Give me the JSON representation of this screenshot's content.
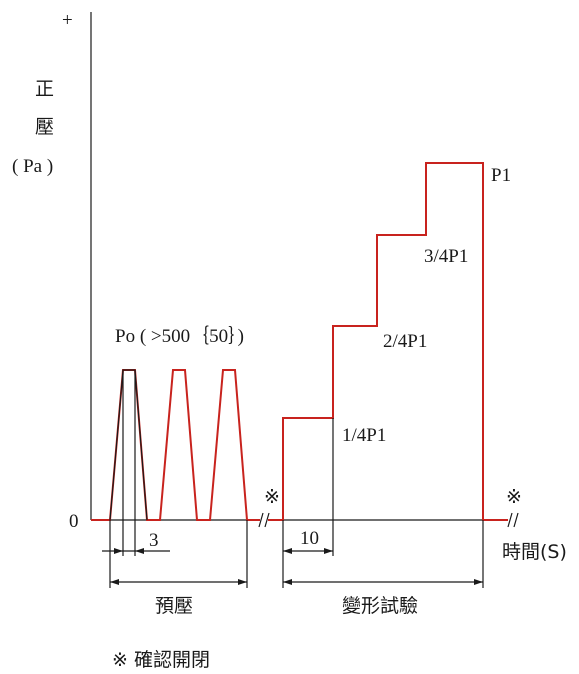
{
  "axis": {
    "plus_sign": "+",
    "ylabel_line1": "正",
    "ylabel_line2": "壓",
    "ylabel_unit": "( Pa )",
    "zero": "0",
    "xlabel": "時間(S)"
  },
  "labels": {
    "po": "Po ( >500｛50｝)",
    "p1": "P1",
    "p3_4": "3/4P1",
    "p2_4": "2/4P1",
    "p1_4": "1/4P1",
    "dim_3": "3",
    "dim_10": "10",
    "preload": "預壓",
    "deformation": "變形試驗",
    "mark_1": "※",
    "mark_2": "※",
    "legend": "※ 確認開閉"
  },
  "colors": {
    "signal": "#c8231e",
    "line": "#1a1a1a"
  }
}
